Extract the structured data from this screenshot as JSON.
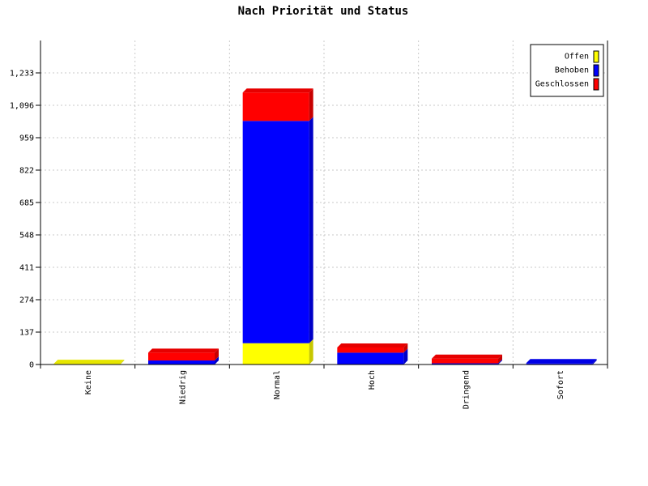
{
  "chart_data": {
    "type": "bar",
    "stacked": true,
    "title": "Nach Priorität und Status",
    "xlabel": "",
    "ylabel": "",
    "categories": [
      "Keine",
      "Niedrig",
      "Normal",
      "Hoch",
      "Dringend",
      "Sofort"
    ],
    "series": [
      {
        "name": "Offen",
        "color": "#ffff00",
        "values": [
          3,
          0,
          90,
          0,
          0,
          0
        ]
      },
      {
        "name": "Behoben",
        "color": "#0000ff",
        "values": [
          0,
          17,
          940,
          50,
          5,
          6
        ]
      },
      {
        "name": "Geschlossen",
        "color": "#ff0000",
        "values": [
          0,
          33,
          120,
          22,
          20,
          0
        ]
      }
    ],
    "ylim": [
      0,
      1370
    ],
    "yticks": [
      0,
      137,
      274,
      411,
      548,
      685,
      822,
      959,
      1096,
      1233
    ],
    "ytick_labels": [
      "0",
      "137",
      "274",
      "411",
      "548",
      "685",
      "822",
      "959",
      "1,096",
      "1,233"
    ],
    "grid": true,
    "legend_position": "top-right"
  }
}
